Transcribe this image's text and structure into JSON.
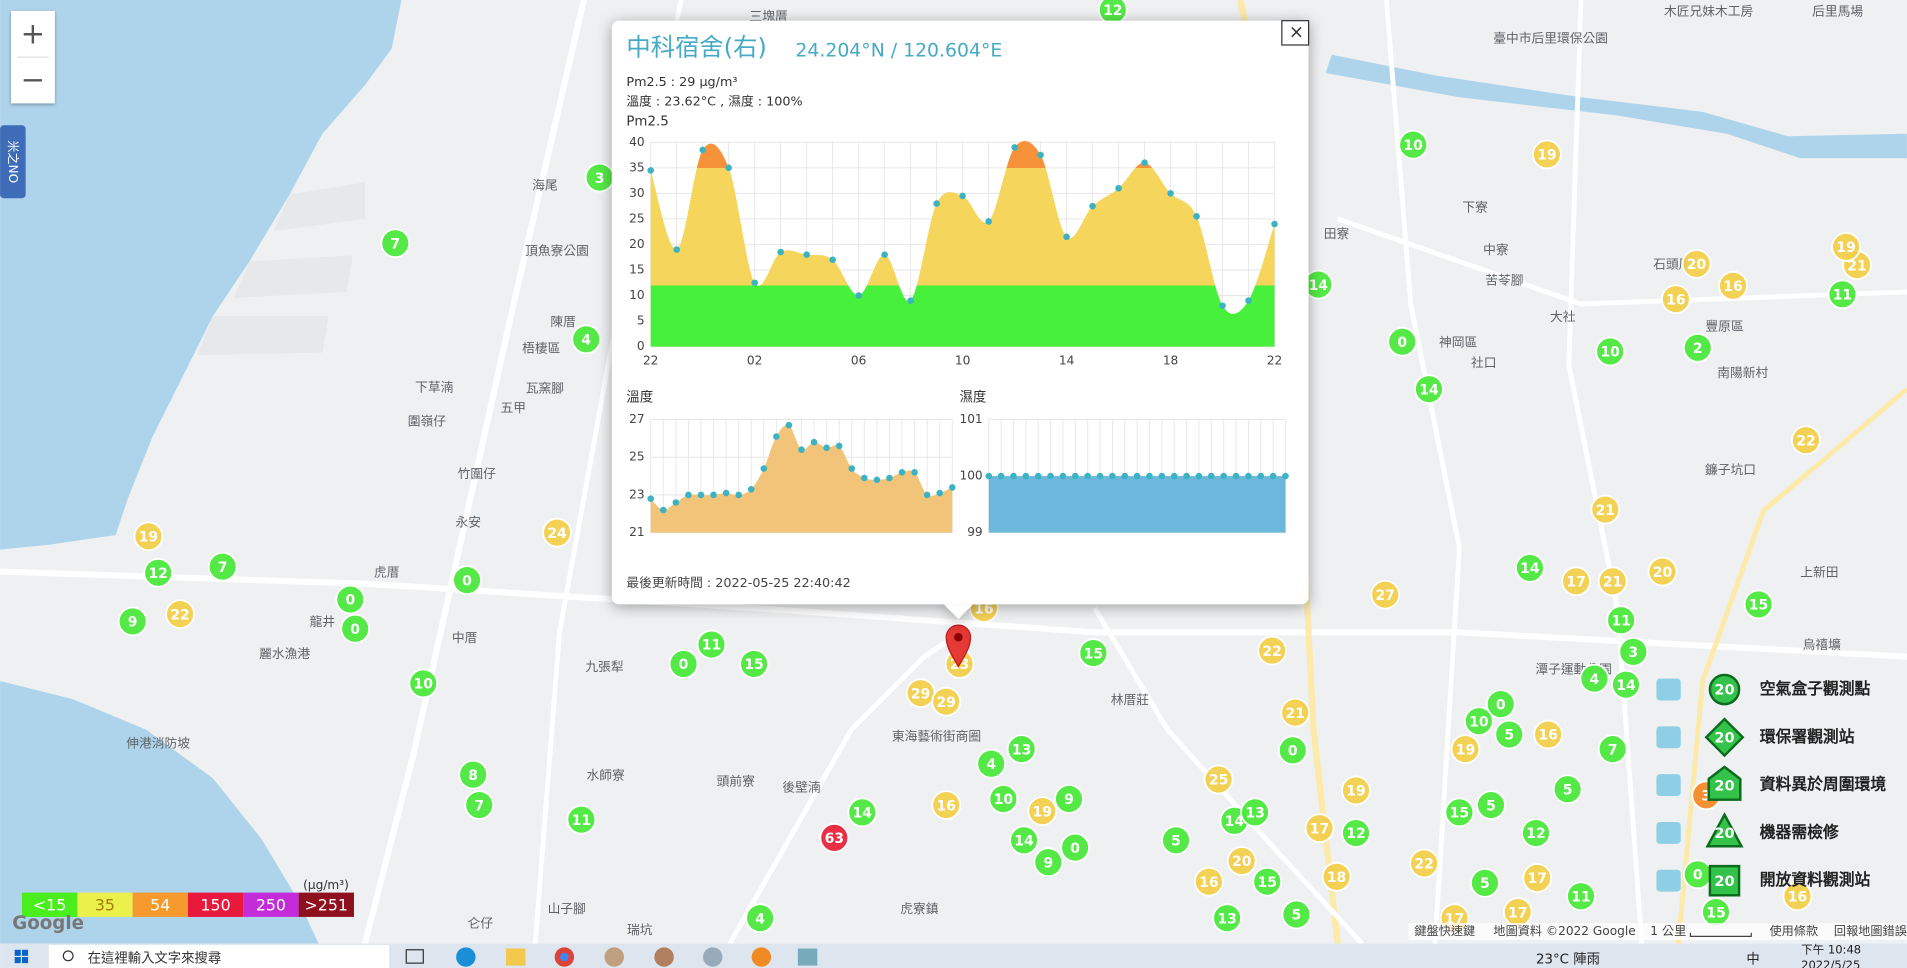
{
  "zoom": {
    "zoom_in": "+",
    "zoom_out": "−"
  },
  "side_tab": "米之NO",
  "popup": {
    "close": "×",
    "title": "中科宿舍(右)",
    "coords": "24.204°N / 120.604°E",
    "pm25_line": "Pm2.5 : 29 μg/m³",
    "weather_line": "溫度 : 23.62°C , 濕度 : 100%",
    "updated": "最後更新時間 : 2022-05-25 22:40:42",
    "pm25_chart": {
      "type": "area",
      "title": "Pm2.5",
      "categories": [
        "22",
        null,
        null,
        null,
        "02",
        null,
        null,
        null,
        "06",
        null,
        null,
        null,
        "10",
        null,
        null,
        null,
        "14",
        null,
        null,
        null,
        "18",
        null,
        null,
        null,
        "22"
      ],
      "values": [
        34.5,
        19,
        38.5,
        35,
        12.5,
        18.5,
        18,
        17,
        10,
        18,
        9,
        28,
        29.5,
        24.5,
        39,
        37.5,
        21.5,
        27.5,
        31,
        36,
        30,
        25.5,
        8,
        9,
        24
      ],
      "ylim": [
        0,
        40
      ],
      "yticks": [
        0,
        5,
        10,
        15,
        20,
        25,
        30,
        35,
        40
      ],
      "grid": true,
      "point_color": "#3bb3c3",
      "color_stops": [
        {
          "value": 12,
          "color": "#47f03a"
        },
        {
          "value": 35,
          "color": "#f5d55c"
        },
        {
          "value": 40,
          "color": "#f5923a"
        }
      ]
    },
    "temp_chart": {
      "type": "area",
      "title": "溫度",
      "values": [
        22.8,
        22.2,
        22.6,
        23.0,
        23.0,
        23.0,
        23.1,
        23.0,
        23.3,
        24.4,
        26.1,
        26.7,
        25.4,
        25.8,
        25.5,
        25.6,
        24.4,
        23.9,
        23.8,
        23.9,
        24.2,
        24.2,
        23.0,
        23.1,
        23.4
      ],
      "ylim": [
        21,
        27
      ],
      "yticks": [
        21,
        23,
        25,
        27
      ],
      "grid": true,
      "point_color": "#3bb3c3",
      "color_stops": [
        {
          "value": 27,
          "color": "#f2c47a"
        }
      ]
    },
    "humidity_chart": {
      "type": "area",
      "title": "濕度",
      "values": [
        100,
        100,
        100,
        100,
        100,
        100,
        100,
        100,
        100,
        100,
        100,
        100,
        100,
        100,
        100,
        100,
        100,
        100,
        100,
        100,
        100,
        100,
        100,
        100,
        100
      ],
      "ylim": [
        99,
        101
      ],
      "yticks": [
        99,
        100,
        101
      ],
      "grid": true,
      "point_color": "#3bb3c3",
      "color_stops": [
        {
          "value": 101,
          "color": "#6cb8dc"
        }
      ]
    }
  },
  "markers": [
    {
      "color": "#4be83c",
      "values": [
        12,
        3,
        7,
        4,
        12,
        7,
        9,
        0,
        0,
        0,
        10,
        0,
        11,
        15,
        8,
        7,
        11,
        14,
        4,
        13,
        4,
        10,
        9,
        0,
        14,
        9,
        15,
        10,
        14,
        0,
        14,
        10,
        2,
        14,
        11,
        3,
        4,
        14,
        0,
        10,
        5,
        7,
        0,
        5,
        15,
        5,
        12,
        11,
        5,
        14,
        13,
        12,
        5,
        15,
        13,
        5,
        15,
        11,
        0,
        15
      ]
    },
    {
      "color": "#f2cf4c",
      "values": [
        19,
        20,
        16,
        16,
        21,
        19,
        22,
        21,
        17,
        21,
        20,
        27,
        22,
        21,
        16,
        19,
        25,
        19,
        17,
        18,
        20,
        16,
        22,
        17,
        17,
        17,
        16,
        19,
        22,
        24,
        29,
        29,
        16,
        19,
        23,
        16
      ]
    },
    {
      "color": "#f58a2a",
      "values": [
        3
      ]
    },
    {
      "color": "#e8243c",
      "values": [
        63
      ]
    }
  ],
  "place_labels": [
    "三塊厝",
    "木匠兄妹木工房",
    "后里馬場",
    "臺中市后里環保公園",
    "海尾",
    "頂魚寮公園",
    "陳厝",
    "梧棲區",
    "下草湳",
    "瓦窯腳",
    "圍嶺仔",
    "五甲",
    "竹圍仔",
    "永安",
    "虎厝",
    "龍井",
    "中厝",
    "九張犁",
    "麗水漁港",
    "伸港消防坡",
    "水師寮",
    "頭前寮",
    "後壁湳",
    "東海藝術街商圈",
    "林厝莊",
    "神岡區",
    "社口",
    "大社",
    "中寮",
    "下寮",
    "苦苓腳",
    "豐原區",
    "南陽新村",
    "田寮",
    "石頭厝",
    "鐮子坑口",
    "上新田",
    "烏禧壙",
    "潭子運動公園",
    "虎寮鎮",
    "山子腳",
    "瑞坑",
    "仑仔"
  ],
  "pin_label": "",
  "aqi_scale": {
    "unit": "(μg/m³)",
    "items": [
      {
        "label": "<15",
        "color": "#49ee1c"
      },
      {
        "label": "35",
        "color": "#ecf04b"
      },
      {
        "label": "54",
        "color": "#f79a2e"
      },
      {
        "label": "150",
        "color": "#e8193c"
      },
      {
        "label": "250",
        "color": "#c32cd8"
      },
      {
        "label": ">251",
        "color": "#8e0f1e"
      }
    ]
  },
  "legend": {
    "items": [
      {
        "label": "空氣盒子觀測點",
        "value": 20
      },
      {
        "label": "環保署觀測站",
        "value": 20
      },
      {
        "label": "資料異於周圍環境",
        "value": 20
      },
      {
        "label": "機器需檢修",
        "value": 20
      },
      {
        "label": "開放資料觀測站",
        "value": 20
      }
    ]
  },
  "footer": {
    "google": "Google",
    "shortcuts": "鍵盤快速鍵",
    "map_data": "地圖資料 ©2022 Google",
    "scale": "1 公里",
    "terms": "使用條款",
    "report": "回報地圖錯誤"
  },
  "taskbar": {
    "search": "在這裡輸入文字來搜尋",
    "weather": "23°C 陣雨",
    "ime": "中",
    "time": "下午 10:48",
    "date": "2022/5/25"
  }
}
